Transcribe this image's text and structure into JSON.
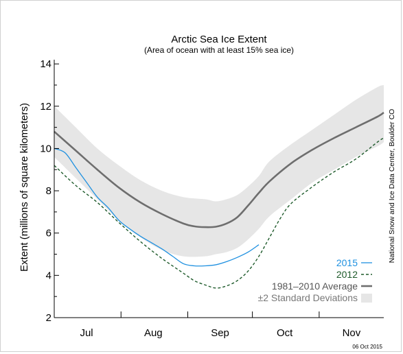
{
  "chart_data": {
    "type": "line",
    "title": "Arctic Sea Ice Extent",
    "subtitle": "(Area of ocean with at least 15% sea ice)",
    "ylabel": "Extent (millions of square kilometers)",
    "xlabel": "",
    "ylim": [
      2,
      14.2
    ],
    "yticks": [
      2,
      4,
      6,
      8,
      10,
      12,
      14
    ],
    "x_domain_days": [
      0,
      153
    ],
    "month_labels": [
      {
        "label": "Jul",
        "day": 15
      },
      {
        "label": "Aug",
        "day": 46
      },
      {
        "label": "Sep",
        "day": 77
      },
      {
        "label": "Oct",
        "day": 107
      },
      {
        "label": "Nov",
        "day": 138
      }
    ],
    "month_boundaries": [
      31,
      62,
      92,
      123
    ],
    "series": [
      {
        "name": "±2 Standard Deviations",
        "kind": "band",
        "color": "#e6e6e6",
        "x": [
          0,
          10,
          20,
          30,
          40,
          50,
          60,
          70,
          75,
          80,
          85,
          90,
          95,
          100,
          110,
          120,
          130,
          140,
          150,
          153
        ],
        "upper": [
          12.0,
          11.0,
          10.0,
          9.2,
          8.5,
          8.0,
          7.7,
          7.6,
          7.5,
          7.6,
          7.8,
          8.2,
          8.7,
          9.4,
          10.2,
          10.9,
          11.6,
          12.3,
          12.9,
          13.0
        ],
        "lower": [
          9.6,
          8.6,
          7.6,
          6.6,
          5.8,
          5.2,
          4.9,
          4.9,
          5.0,
          5.1,
          5.3,
          5.7,
          6.2,
          6.8,
          7.6,
          8.4,
          9.0,
          9.6,
          10.1,
          10.3
        ]
      },
      {
        "name": "1981–2010 Average",
        "kind": "line",
        "color": "#6e6e6e",
        "x": [
          0,
          10,
          20,
          30,
          40,
          50,
          60,
          65,
          70,
          75,
          80,
          85,
          90,
          95,
          100,
          110,
          120,
          130,
          140,
          150,
          153
        ],
        "values": [
          10.8,
          9.9,
          9.0,
          8.15,
          7.45,
          6.9,
          6.45,
          6.32,
          6.28,
          6.3,
          6.45,
          6.75,
          7.3,
          7.9,
          8.45,
          9.3,
          9.95,
          10.5,
          11.0,
          11.5,
          11.7
        ]
      },
      {
        "name": "2015",
        "kind": "line",
        "color": "#1e90e0",
        "x": [
          0,
          5,
          10,
          15,
          20,
          25,
          30,
          35,
          40,
          45,
          50,
          55,
          60,
          65,
          70,
          75,
          80,
          85,
          90,
          95
        ],
        "values": [
          10.0,
          9.8,
          9.1,
          8.4,
          7.7,
          7.2,
          6.6,
          6.2,
          5.85,
          5.55,
          5.25,
          4.9,
          4.55,
          4.45,
          4.45,
          4.5,
          4.65,
          4.85,
          5.1,
          5.45
        ]
      },
      {
        "name": "2012",
        "kind": "dashed",
        "color": "#1d5a2a",
        "x": [
          0,
          10,
          20,
          30,
          40,
          50,
          60,
          65,
          70,
          75,
          80,
          85,
          90,
          95,
          100,
          105,
          110,
          120,
          130,
          140,
          150,
          153
        ],
        "values": [
          9.2,
          8.25,
          7.45,
          6.5,
          5.6,
          4.8,
          4.1,
          3.75,
          3.55,
          3.4,
          3.5,
          3.75,
          4.2,
          4.9,
          5.8,
          6.7,
          7.4,
          8.2,
          8.9,
          9.5,
          10.3,
          10.5
        ]
      }
    ],
    "legend": {
      "placement": "bottom-right",
      "entries": [
        {
          "label": "2015",
          "color": "#1e90e0",
          "style": "solid"
        },
        {
          "label": "2012",
          "color": "#1d5a2a",
          "style": "dashed"
        },
        {
          "label": "1981–2010 Average",
          "color": "#6e6e6e",
          "style": "thick"
        },
        {
          "label": "±2 Standard Deviations",
          "color": "#e6e6e6",
          "style": "box"
        }
      ]
    },
    "credit": "National Snow and Ice Data Center, Boulder CO",
    "date_stamp": "06 Oct 2015"
  }
}
